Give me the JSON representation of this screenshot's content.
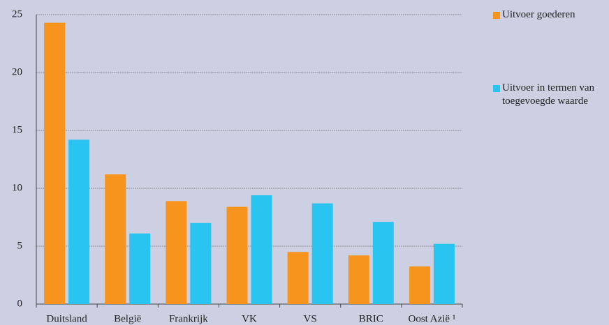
{
  "chart_data": {
    "type": "bar",
    "categories": [
      "Duitsland",
      "België",
      "Frankrijk",
      "VK",
      "VS",
      "BRIC",
      "Oost Azië ¹"
    ],
    "series": [
      {
        "name": "Uitvoer goederen",
        "color": "#f7941d",
        "values": [
          24.3,
          11.2,
          8.9,
          8.4,
          4.5,
          4.2,
          3.25
        ]
      },
      {
        "name": "Uitvoer in termen van toegevoegde waarde",
        "color": "#29c5f0",
        "values": [
          14.2,
          6.1,
          7.0,
          9.4,
          8.7,
          7.1,
          5.2
        ]
      }
    ],
    "ylim": [
      0,
      25
    ],
    "yticks": [
      0,
      5,
      10,
      15,
      20,
      25
    ],
    "grid": true,
    "legend": "right"
  }
}
